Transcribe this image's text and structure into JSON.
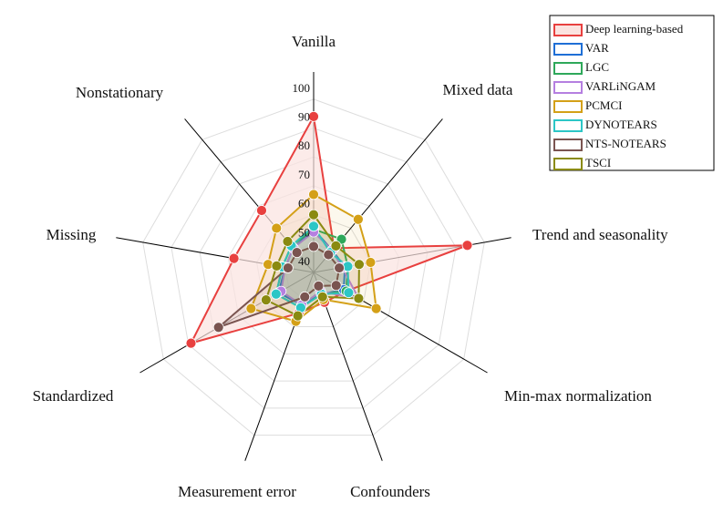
{
  "chart_data": {
    "type": "radar",
    "categories": [
      "Vanilla",
      "Mixed data",
      "Trend and seasonality",
      "Min-max normalization",
      "Confounders",
      "Measurement error",
      "Standardized",
      "Missing",
      "Nonstationary"
    ],
    "rlim": [
      40,
      105
    ],
    "rticks": [
      40,
      50,
      60,
      70,
      80,
      90,
      100
    ],
    "grid": true,
    "legend": "upper right",
    "series": [
      {
        "name": "Deep learning-based",
        "color": "#e8403f",
        "fill": "#fbe3e0",
        "values": [
          94,
          51,
          94,
          53,
          51,
          55,
          89,
          68,
          68
        ]
      },
      {
        "name": "VAR",
        "color": "#1f6fd6",
        "values": [
          55,
          50,
          51,
          52,
          48,
          52,
          54,
          50,
          51
        ]
      },
      {
        "name": "LGC",
        "color": "#2ea85a",
        "values": [
          55,
          55,
          52,
          53,
          48,
          53,
          55,
          51,
          52
        ]
      },
      {
        "name": "VARLiNGAM",
        "color": "#b57fe0",
        "values": [
          54,
          50,
          50,
          58,
          47,
          52,
          53,
          50,
          51
        ]
      },
      {
        "name": "PCMCI",
        "color": "#d4a017",
        "values": [
          67,
          64,
          60,
          65,
          50,
          58,
          65,
          56,
          60
        ]
      },
      {
        "name": "DYNOTEARS",
        "color": "#2cc6c6",
        "values": [
          56,
          49,
          52,
          54,
          48,
          53,
          55,
          51,
          52
        ]
      },
      {
        "name": "NTS-NOTEARS",
        "color": "#7a5450",
        "values": [
          49,
          48,
          49,
          49,
          45,
          49,
          78,
          49,
          49
        ]
      },
      {
        "name": "TSCI",
        "color": "#8a8a10",
        "values": [
          60,
          52,
          56,
          58,
          49,
          56,
          59,
          53,
          54
        ]
      }
    ]
  }
}
